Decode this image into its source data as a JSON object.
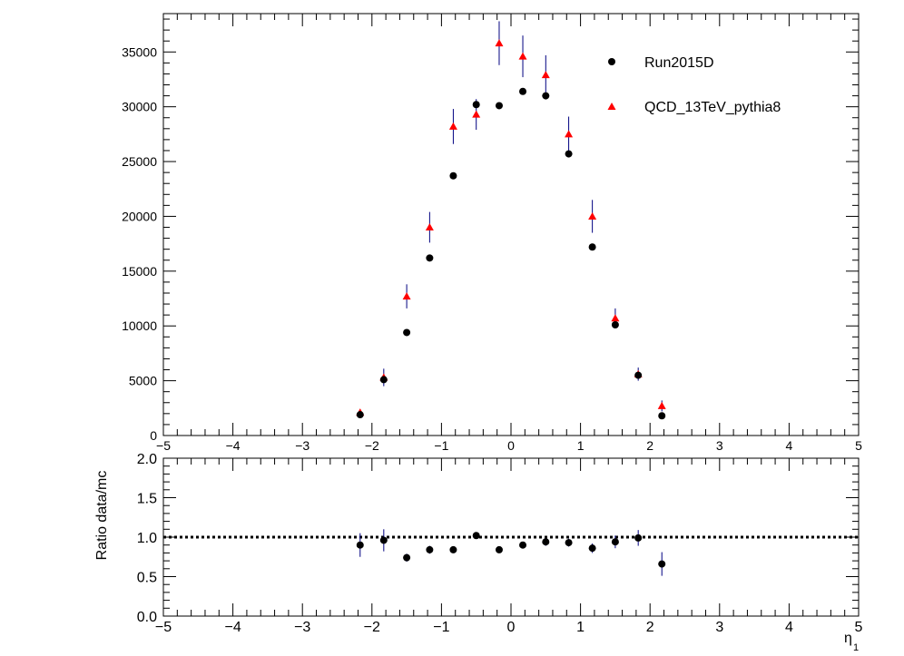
{
  "chart_data": [
    {
      "type": "scatter",
      "panel": "main",
      "title": "",
      "xlabel": "",
      "ylabel": "",
      "xlim": [
        -5,
        5
      ],
      "ylim": [
        0,
        38500
      ],
      "x_ticks": [
        "−5",
        "−4",
        "−3",
        "−2",
        "−1",
        "0",
        "1",
        "2",
        "3",
        "4",
        "5"
      ],
      "y_ticks": [
        "0",
        "5000",
        "10000",
        "15000",
        "20000",
        "25000",
        "30000",
        "35000"
      ],
      "legend_position": "top-right",
      "series": [
        {
          "name": "Run2015D",
          "marker": "circle",
          "color": "#000000",
          "points": [
            {
              "x": -2.17,
              "y": 1900
            },
            {
              "x": -1.83,
              "y": 5100
            },
            {
              "x": -1.5,
              "y": 9400
            },
            {
              "x": -1.17,
              "y": 16200
            },
            {
              "x": -0.83,
              "y": 23700
            },
            {
              "x": -0.5,
              "y": 30200
            },
            {
              "x": -0.17,
              "y": 30100
            },
            {
              "x": 0.17,
              "y": 31400
            },
            {
              "x": 0.5,
              "y": 31000
            },
            {
              "x": 0.83,
              "y": 25700
            },
            {
              "x": 1.17,
              "y": 17200
            },
            {
              "x": 1.5,
              "y": 10100
            },
            {
              "x": 1.83,
              "y": 5500
            },
            {
              "x": 2.17,
              "y": 1800
            }
          ]
        },
        {
          "name": "QCD_13TeV_pythia8",
          "marker": "triangle",
          "color": "#ff0000",
          "error_color": "#000080",
          "points": [
            {
              "x": -2.17,
              "y": 2100,
              "err": 250
            },
            {
              "x": -1.83,
              "y": 5300,
              "err": 800
            },
            {
              "x": -1.5,
              "y": 12700,
              "err": 1100
            },
            {
              "x": -1.17,
              "y": 19000,
              "err": 1400
            },
            {
              "x": -0.83,
              "y": 28200,
              "err": 1600
            },
            {
              "x": -0.5,
              "y": 29300,
              "err": 1400
            },
            {
              "x": -0.17,
              "y": 35800,
              "err": 2000
            },
            {
              "x": 0.17,
              "y": 34600,
              "err": 1900
            },
            {
              "x": 0.5,
              "y": 32900,
              "err": 1800
            },
            {
              "x": 0.83,
              "y": 27500,
              "err": 1600
            },
            {
              "x": 1.17,
              "y": 20000,
              "err": 1500
            },
            {
              "x": 1.5,
              "y": 10700,
              "err": 900
            },
            {
              "x": 1.83,
              "y": 5600,
              "err": 600
            },
            {
              "x": 2.17,
              "y": 2700,
              "err": 500
            }
          ]
        }
      ]
    },
    {
      "type": "scatter",
      "panel": "ratio",
      "title": "",
      "xlabel": "η",
      "xlabel_subscript": "1",
      "ylabel": "Ratio data/mc",
      "xlim": [
        -5,
        5
      ],
      "ylim": [
        0,
        2
      ],
      "x_ticks": [
        "−5",
        "−4",
        "−3",
        "−2",
        "−1",
        "0",
        "1",
        "2",
        "3",
        "4",
        "5"
      ],
      "y_ticks": [
        "0.0",
        "0.5",
        "1.0",
        "1.5",
        "2.0"
      ],
      "reference_line": 1.0,
      "series": [
        {
          "name": "",
          "marker": "circle",
          "color": "#000000",
          "error_color": "#000080",
          "points": [
            {
              "x": -2.17,
              "y": 0.9,
              "err": 0.15
            },
            {
              "x": -1.83,
              "y": 0.96,
              "err": 0.14
            },
            {
              "x": -1.5,
              "y": 0.74,
              "err": 0.05
            },
            {
              "x": -1.17,
              "y": 0.84,
              "err": 0.05
            },
            {
              "x": -0.83,
              "y": 0.84,
              "err": 0.04
            },
            {
              "x": -0.5,
              "y": 1.02,
              "err": 0.04
            },
            {
              "x": -0.17,
              "y": 0.84,
              "err": 0.04
            },
            {
              "x": 0.17,
              "y": 0.9,
              "err": 0.04
            },
            {
              "x": 0.5,
              "y": 0.94,
              "err": 0.05
            },
            {
              "x": 0.83,
              "y": 0.93,
              "err": 0.05
            },
            {
              "x": 1.17,
              "y": 0.86,
              "err": 0.06
            },
            {
              "x": 1.5,
              "y": 0.94,
              "err": 0.08
            },
            {
              "x": 1.83,
              "y": 0.99,
              "err": 0.1
            },
            {
              "x": 2.17,
              "y": 0.66,
              "err": 0.15
            }
          ]
        }
      ]
    }
  ]
}
